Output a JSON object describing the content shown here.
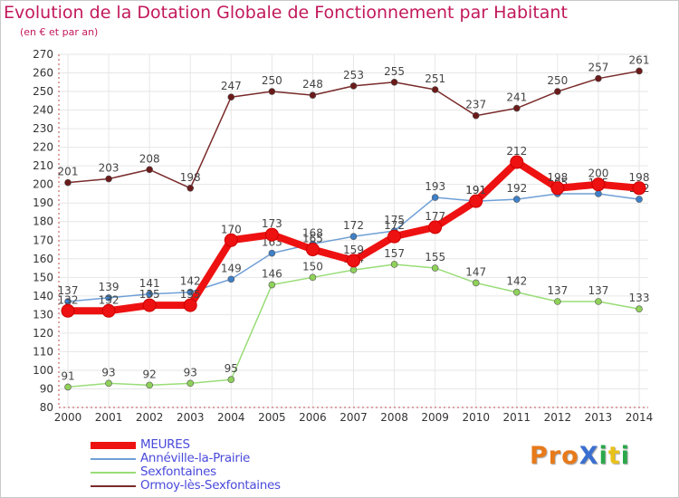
{
  "chart_data": {
    "type": "line",
    "title": "Evolution de la Dotation Globale de Fonctionnement par Habitant",
    "subtitle": "(en € et par an)",
    "xlabel": "",
    "ylabel": "",
    "ylim": [
      80,
      270
    ],
    "ytick_step": 10,
    "grid": true,
    "legend_position": "bottom-left",
    "x": [
      "2000",
      "2001",
      "2002",
      "2003",
      "2004",
      "2005",
      "2006",
      "2007",
      "2008",
      "2009",
      "2010",
      "2011",
      "2012",
      "2013",
      "2014"
    ],
    "series": [
      {
        "name": "Ormoy-lès-Sexfontaines",
        "color": "#7a2b2b",
        "marker": "#6b1a1a",
        "values": [
          201,
          203,
          208,
          198,
          247,
          250,
          248,
          253,
          255,
          251,
          237,
          241,
          250,
          257,
          261
        ]
      },
      {
        "name": "Sexfontaines",
        "color": "#99dd77",
        "marker": "#8fd15a",
        "values": [
          91,
          93,
          92,
          93,
          95,
          146,
          150,
          154,
          157,
          155,
          147,
          142,
          137,
          137,
          133
        ]
      },
      {
        "name": "Annéville-la-Prairie",
        "color": "#6f9fd6",
        "marker": "#3e80c8",
        "values": [
          137,
          139,
          141,
          142,
          149,
          163,
          168,
          172,
          175,
          193,
          191,
          192,
          195,
          195,
          192
        ]
      },
      {
        "name": "MEURES",
        "color": "#ee1111",
        "marker": "#ee1111",
        "values": [
          132,
          132,
          135,
          135,
          170,
          173,
          165,
          159,
          172,
          177,
          191,
          212,
          198,
          200,
          198
        ]
      }
    ],
    "legend_order": [
      "MEURES",
      "Annéville-la-Prairie",
      "Sexfontaines",
      "Ormoy-lès-Sexfontaines"
    ]
  },
  "logo": {
    "text": "ProXiti",
    "letters": [
      {
        "ch": "P",
        "color": "#e87a1a"
      },
      {
        "ch": "r",
        "color": "#e87a1a"
      },
      {
        "ch": "o",
        "color": "#e87a1a"
      },
      {
        "ch": "X",
        "color": "#3a6fd0"
      },
      {
        "ch": "i",
        "color": "#2aa84a"
      },
      {
        "ch": "t",
        "color": "#e8c21a"
      },
      {
        "ch": "i",
        "color": "#2aa84a"
      }
    ]
  }
}
